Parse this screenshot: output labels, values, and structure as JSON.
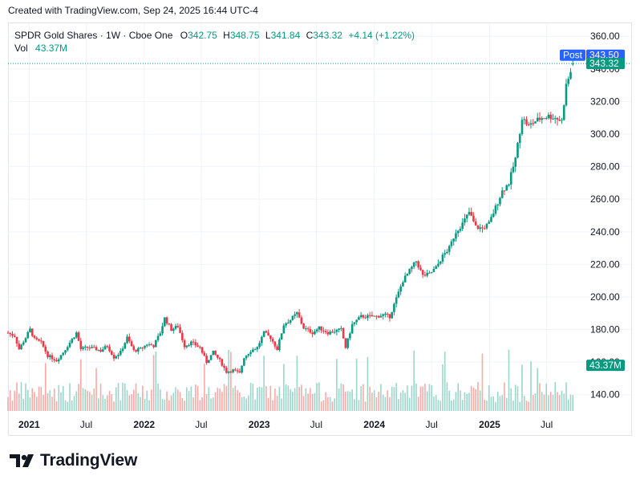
{
  "header": {
    "created_note": "Created with TradingView.com, Sep 24, 2025 16:44 UTC-4"
  },
  "legend": {
    "symbol": "SPDR Gold Shares · 1W · Cboe One",
    "open_label": "O",
    "open": "342.75",
    "high_label": "H",
    "high": "348.75",
    "low_label": "L",
    "low": "341.84",
    "close_label": "C",
    "close": "343.32",
    "change": "+4.14 (+1.22%)",
    "vol_label": "Vol",
    "vol": "43.37M"
  },
  "badges": {
    "post_label": "Post",
    "post_price": "343.50",
    "last_price": "343.32",
    "volume": "43.37M"
  },
  "brand": {
    "name": "TradingView"
  },
  "colors": {
    "up": "#089981",
    "down": "#f23645",
    "post": "#2962ff",
    "grid": "#f0f3fa",
    "text": "#131722"
  },
  "chart_data": {
    "type": "candlestick",
    "title": "SPDR Gold Shares",
    "interval": "1W",
    "y_ticks": [
      140,
      160,
      180,
      200,
      220,
      240,
      260,
      280,
      300,
      320,
      340,
      360
    ],
    "y_tick_labels": [
      "140.00",
      "160.00",
      "180.00",
      "200.00",
      "220.00",
      "240.00",
      "260.00",
      "280.00",
      "300.00",
      "320.00",
      "340.00",
      "360.00"
    ],
    "ylim": [
      130,
      368
    ],
    "x_ticks": [
      "2021",
      "Jul",
      "2022",
      "Jul",
      "2023",
      "Jul",
      "2024",
      "Jul",
      "2025",
      "Jul"
    ],
    "x_tick_dates": [
      "2021-01-01",
      "2021-07-01",
      "2022-01-01",
      "2022-07-01",
      "2023-01-01",
      "2023-07-01",
      "2024-01-01",
      "2024-07-01",
      "2025-01-01",
      "2025-07-01"
    ],
    "x_range": [
      "2020-10-26",
      "2025-10-27"
    ],
    "close_path": [
      [
        "2020-10-26",
        178
      ],
      [
        "2020-11-16",
        176
      ],
      [
        "2020-11-30",
        168
      ],
      [
        "2020-12-21",
        175
      ],
      [
        "2021-01-04",
        180
      ],
      [
        "2021-01-18",
        174
      ],
      [
        "2021-02-08",
        172
      ],
      [
        "2021-03-01",
        164
      ],
      [
        "2021-03-29",
        161
      ],
      [
        "2021-04-19",
        166
      ],
      [
        "2021-05-10",
        172
      ],
      [
        "2021-05-31",
        178
      ],
      [
        "2021-06-14",
        168
      ],
      [
        "2021-07-05",
        169
      ],
      [
        "2021-08-02",
        168
      ],
      [
        "2021-08-16",
        167
      ],
      [
        "2021-09-06",
        170
      ],
      [
        "2021-09-27",
        163
      ],
      [
        "2021-10-18",
        166
      ],
      [
        "2021-11-08",
        175
      ],
      [
        "2021-11-29",
        167
      ],
      [
        "2021-12-20",
        168
      ],
      [
        "2022-01-10",
        171
      ],
      [
        "2022-01-31",
        170
      ],
      [
        "2022-02-21",
        178
      ],
      [
        "2022-03-07",
        187
      ],
      [
        "2022-03-28",
        180
      ],
      [
        "2022-04-18",
        182
      ],
      [
        "2022-05-09",
        170
      ],
      [
        "2022-05-30",
        172
      ],
      [
        "2022-06-27",
        169
      ],
      [
        "2022-07-18",
        160
      ],
      [
        "2022-08-08",
        166
      ],
      [
        "2022-08-29",
        161
      ],
      [
        "2022-09-19",
        154
      ],
      [
        "2022-10-10",
        155
      ],
      [
        "2022-10-31",
        153
      ],
      [
        "2022-11-14",
        163
      ],
      [
        "2022-12-05",
        167
      ],
      [
        "2022-12-26",
        169
      ],
      [
        "2023-01-16",
        178
      ],
      [
        "2023-02-06",
        175
      ],
      [
        "2023-02-27",
        168
      ],
      [
        "2023-03-20",
        183
      ],
      [
        "2023-04-10",
        186
      ],
      [
        "2023-05-01",
        190
      ],
      [
        "2023-05-22",
        181
      ],
      [
        "2023-06-19",
        178
      ],
      [
        "2023-07-10",
        181
      ],
      [
        "2023-08-07",
        178
      ],
      [
        "2023-08-28",
        179
      ],
      [
        "2023-09-18",
        180
      ],
      [
        "2023-10-02",
        169
      ],
      [
        "2023-10-23",
        183
      ],
      [
        "2023-11-20",
        188
      ],
      [
        "2023-12-11",
        188
      ],
      [
        "2024-01-08",
        188
      ],
      [
        "2024-01-29",
        189
      ],
      [
        "2024-02-19",
        188
      ],
      [
        "2024-03-11",
        199
      ],
      [
        "2024-04-01",
        210
      ],
      [
        "2024-04-22",
        216
      ],
      [
        "2024-05-13",
        222
      ],
      [
        "2024-06-03",
        213
      ],
      [
        "2024-06-24",
        214
      ],
      [
        "2024-07-15",
        218
      ],
      [
        "2024-08-05",
        225
      ],
      [
        "2024-08-26",
        230
      ],
      [
        "2024-09-16",
        240
      ],
      [
        "2024-10-07",
        245
      ],
      [
        "2024-10-28",
        252
      ],
      [
        "2024-11-18",
        243
      ],
      [
        "2024-12-09",
        242
      ],
      [
        "2024-12-30",
        245
      ],
      [
        "2025-01-20",
        255
      ],
      [
        "2025-02-10",
        265
      ],
      [
        "2025-03-03",
        270
      ],
      [
        "2025-03-24",
        285
      ],
      [
        "2025-04-14",
        310
      ],
      [
        "2025-05-05",
        305
      ],
      [
        "2025-05-26",
        308
      ],
      [
        "2025-06-16",
        310
      ],
      [
        "2025-07-07",
        311
      ],
      [
        "2025-07-28",
        310
      ],
      [
        "2025-08-18",
        308
      ],
      [
        "2025-09-01",
        330
      ],
      [
        "2025-09-15",
        338
      ],
      [
        "2025-09-22",
        343.32
      ]
    ],
    "volume_ylim": [
      0,
      70
    ],
    "last": {
      "open": 342.75,
      "high": 348.75,
      "low": 341.84,
      "close": 343.32
    },
    "post_price": 343.5
  }
}
